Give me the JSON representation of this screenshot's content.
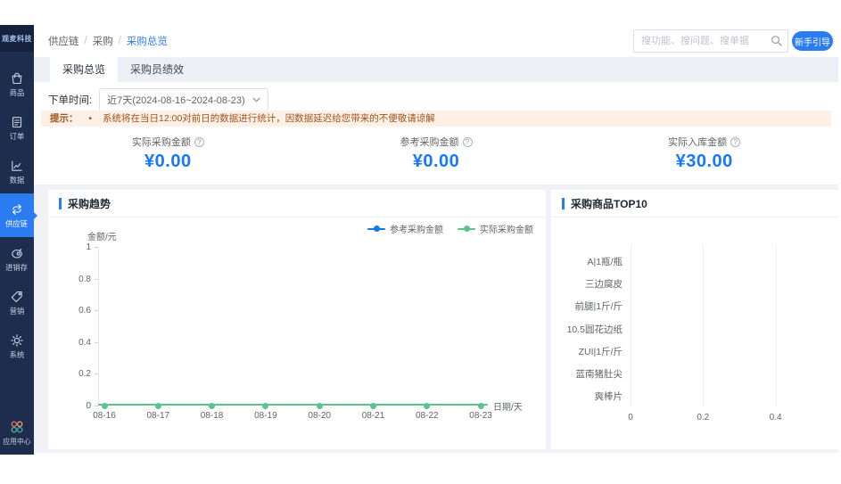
{
  "brand": {
    "name": "观麦科技"
  },
  "sidebar": {
    "items": [
      {
        "icon": "goods-icon",
        "label": "商品",
        "active": false
      },
      {
        "icon": "orders-icon",
        "label": "订单",
        "active": false
      },
      {
        "icon": "data-icon",
        "label": "数据",
        "active": false
      },
      {
        "icon": "supply-chain-icon",
        "label": "供应链",
        "active": true
      },
      {
        "icon": "inventory-icon",
        "label": "进销存",
        "active": false
      },
      {
        "icon": "marketing-icon",
        "label": "营销",
        "active": false
      },
      {
        "icon": "system-icon",
        "label": "系统",
        "active": false
      }
    ],
    "app_center": {
      "icon": "app-center-icon",
      "label": "应用中心"
    }
  },
  "topbar": {
    "breadcrumb": [
      "供应链",
      "采购",
      "采购总览"
    ],
    "search": {
      "placeholder": "搜功能、搜问题、搜单据"
    },
    "guide_button": "新手引导"
  },
  "tabs": [
    {
      "label": "采购总览",
      "active": true
    },
    {
      "label": "采购员绩效",
      "active": false
    }
  ],
  "filter": {
    "label": "下单时间:",
    "value": "近7天(2024-08-16~2024-08-23)"
  },
  "notice": {
    "prefix": "提示：",
    "bullet": "•",
    "text": "系统将在当日12:00对前日的数据进行统计，因数据延迟给您带来的不便敬请谅解"
  },
  "stats": [
    {
      "label": "实际采购金额",
      "value": "¥0.00"
    },
    {
      "label": "参考采购金额",
      "value": "¥0.00"
    },
    {
      "label": "实际入库金额",
      "value": "¥30.00"
    }
  ],
  "colors": {
    "accent": "#2b7cf0",
    "stat_value": "#1677ff",
    "series_blue": "#1677f0",
    "series_green": "#5bc48e",
    "sidebar_bg": "#1e2c4e",
    "notice_bg": "#fdf0e6",
    "notice_text": "#a0541f",
    "app_center_circles": [
      "#e36a6a",
      "#e39a6a",
      "#4fae7f",
      "#33a6b8"
    ]
  },
  "chart_data": [
    {
      "type": "line",
      "title": "采购趋势",
      "x": [
        "08-16",
        "08-17",
        "08-18",
        "08-19",
        "08-20",
        "08-21",
        "08-22",
        "08-23"
      ],
      "series": [
        {
          "name": "参考采购金额",
          "color": "#1677f0",
          "values": [
            0,
            0,
            0,
            0,
            0,
            0,
            0,
            0
          ]
        },
        {
          "name": "实际采购金额",
          "color": "#5bc48e",
          "values": [
            0,
            0,
            0,
            0,
            0,
            0,
            0,
            0
          ]
        }
      ],
      "ylabel": "金额/元",
      "xlabel": "日期/天",
      "ylim": [
        0,
        1
      ],
      "yticks": [
        0,
        0.2,
        0.4,
        0.6,
        0.8,
        1
      ],
      "legend_position": "top-right",
      "grid": false
    },
    {
      "type": "bar",
      "orientation": "horizontal",
      "title": "采购商品TOP10",
      "categories": [
        "A|1瓶/瓶",
        "三边腐皮",
        "前腿|1斤/斤",
        "10.5圆花边纸",
        "ZUI|1斤/斤",
        "蓝南猪肚尖",
        "爽棒片"
      ],
      "values": [
        0,
        0,
        0,
        0,
        0,
        0,
        0
      ],
      "xticks": [
        0,
        0.2,
        0.4
      ],
      "xlim": [
        0,
        0.5
      ],
      "grid": true
    }
  ]
}
